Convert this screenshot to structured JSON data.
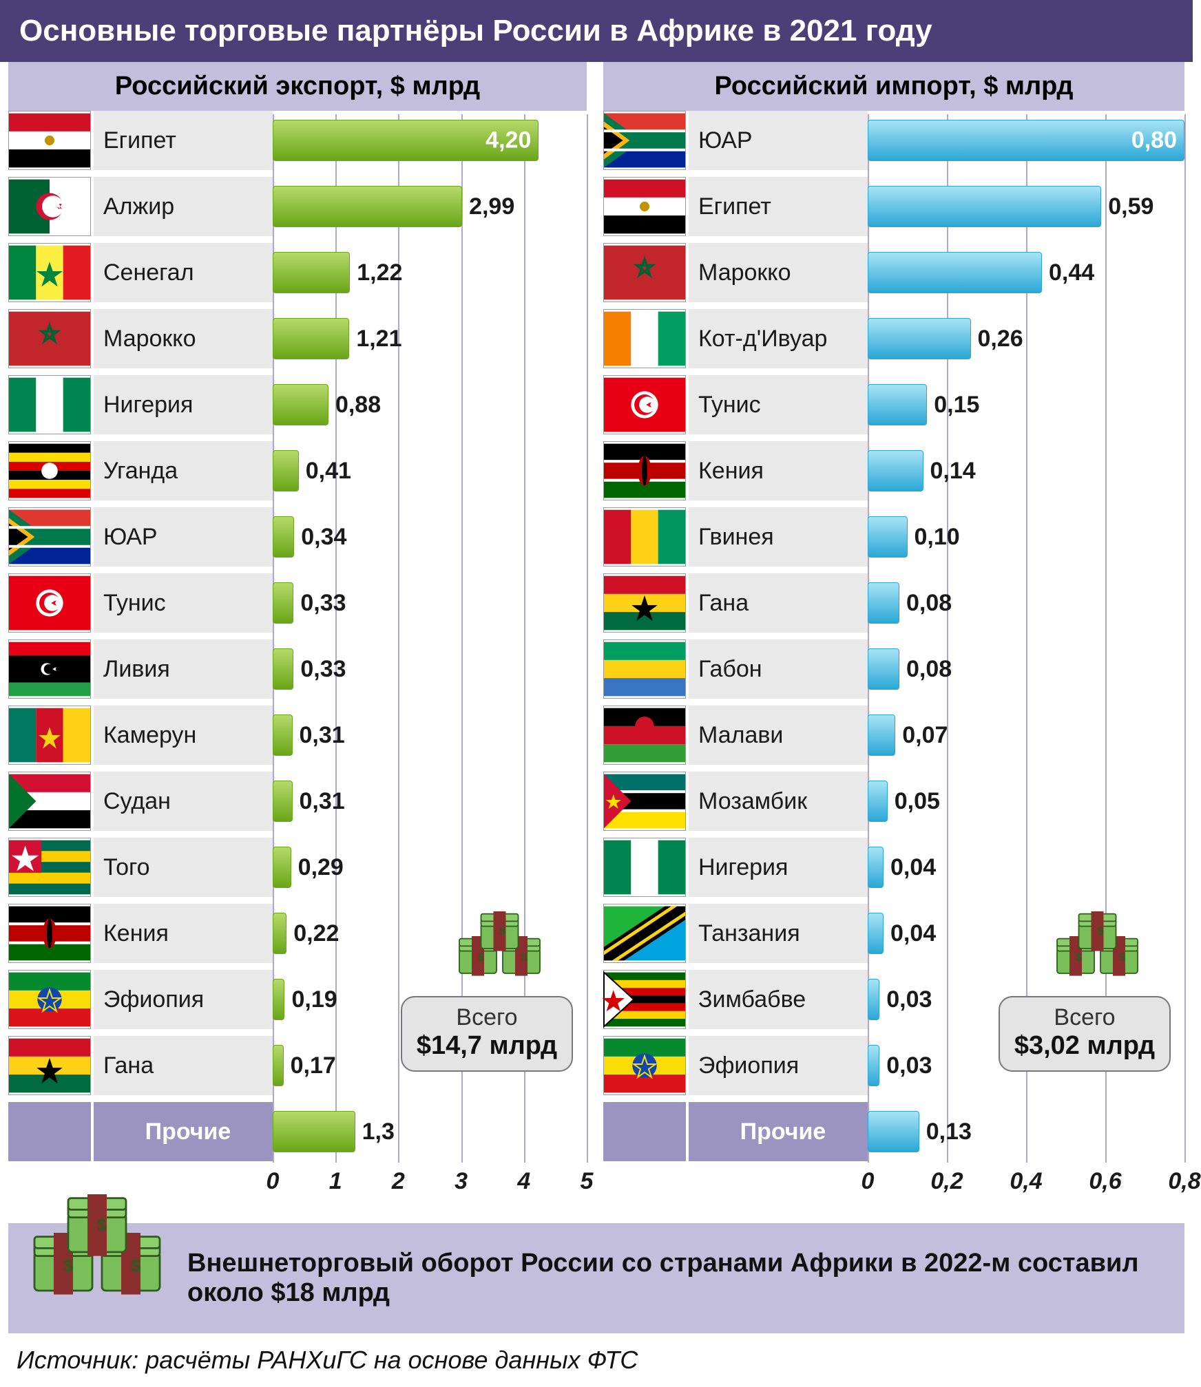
{
  "colors": {
    "header_bg": "#4b3f78",
    "band_bg": "#c2bedc",
    "grid_color": "#b0a8cc",
    "label_cell_bg": "#e9e9e9",
    "prochie_bg": "#9b94c0",
    "text": "#1a1a1a"
  },
  "title": "Основные торговые партнёры России в Африке в 2021 году",
  "export": {
    "header": "Российский экспорт, $ млрд",
    "max": 5,
    "tick_step": 1,
    "ticks": [
      "0",
      "1",
      "2",
      "3",
      "4",
      "5"
    ],
    "bar_gradient": [
      "#b5d96a",
      "#6aa61a"
    ],
    "items": [
      {
        "country": "Египет",
        "value": 4.2,
        "label": "4,20",
        "inside": true,
        "flag": "egypt"
      },
      {
        "country": "Алжир",
        "value": 2.99,
        "label": "2,99",
        "flag": "algeria"
      },
      {
        "country": "Сенегал",
        "value": 1.22,
        "label": "1,22",
        "flag": "senegal"
      },
      {
        "country": "Марокко",
        "value": 1.21,
        "label": "1,21",
        "flag": "morocco"
      },
      {
        "country": "Нигерия",
        "value": 0.88,
        "label": "0,88",
        "flag": "nigeria"
      },
      {
        "country": "Уганда",
        "value": 0.41,
        "label": "0,41",
        "flag": "uganda"
      },
      {
        "country": "ЮАР",
        "value": 0.34,
        "label": "0,34",
        "flag": "southafrica"
      },
      {
        "country": "Тунис",
        "value": 0.33,
        "label": "0,33",
        "flag": "tunisia"
      },
      {
        "country": "Ливия",
        "value": 0.33,
        "label": "0,33",
        "flag": "libya"
      },
      {
        "country": "Камерун",
        "value": 0.31,
        "label": "0,31",
        "flag": "cameroon"
      },
      {
        "country": "Судан",
        "value": 0.31,
        "label": "0,31",
        "flag": "sudan"
      },
      {
        "country": "Того",
        "value": 0.29,
        "label": "0,29",
        "flag": "togo"
      },
      {
        "country": "Кения",
        "value": 0.22,
        "label": "0,22",
        "flag": "kenya"
      },
      {
        "country": "Эфиопия",
        "value": 0.19,
        "label": "0,19",
        "flag": "ethiopia"
      },
      {
        "country": "Гана",
        "value": 0.17,
        "label": "0,17",
        "flag": "ghana"
      }
    ],
    "other": {
      "label": "Прочие",
      "value": 1.3,
      "value_label": "1,3"
    },
    "total_label": "Всего",
    "total_value": "$14,7 млрд"
  },
  "import": {
    "header": "Российский импорт, $ млрд",
    "max": 0.8,
    "tick_step": 0.2,
    "ticks": [
      "0",
      "0,2",
      "0,4",
      "0,6",
      "0,8"
    ],
    "bar_gradient": [
      "#a8e3f5",
      "#2aa7d6"
    ],
    "items": [
      {
        "country": "ЮАР",
        "value": 0.8,
        "label": "0,80",
        "inside": true,
        "flag": "southafrica"
      },
      {
        "country": "Египет",
        "value": 0.59,
        "label": "0,59",
        "flag": "egypt"
      },
      {
        "country": "Марокко",
        "value": 0.44,
        "label": "0,44",
        "flag": "morocco"
      },
      {
        "country": "Кот-д'Ивуар",
        "value": 0.26,
        "label": "0,26",
        "flag": "ivorycoast"
      },
      {
        "country": "Тунис",
        "value": 0.15,
        "label": "0,15",
        "flag": "tunisia"
      },
      {
        "country": "Кения",
        "value": 0.14,
        "label": "0,14",
        "flag": "kenya"
      },
      {
        "country": "Гвинея",
        "value": 0.1,
        "label": "0,10",
        "flag": "guinea"
      },
      {
        "country": "Гана",
        "value": 0.08,
        "label": "0,08",
        "flag": "ghana"
      },
      {
        "country": "Габон",
        "value": 0.08,
        "label": "0,08",
        "flag": "gabon"
      },
      {
        "country": "Малави",
        "value": 0.07,
        "label": "0,07",
        "flag": "malawi"
      },
      {
        "country": "Мозамбик",
        "value": 0.05,
        "label": "0,05",
        "flag": "mozambique"
      },
      {
        "country": "Нигерия",
        "value": 0.04,
        "label": "0,04",
        "flag": "nigeria"
      },
      {
        "country": "Танзания",
        "value": 0.04,
        "label": "0,04",
        "flag": "tanzania"
      },
      {
        "country": "Зимбабве",
        "value": 0.03,
        "label": "0,03",
        "flag": "zimbabwe"
      },
      {
        "country": "Эфиопия",
        "value": 0.03,
        "label": "0,03",
        "flag": "ethiopia"
      }
    ],
    "other": {
      "label": "Прочие",
      "value": 0.13,
      "value_label": "0,13"
    },
    "total_label": "Всего",
    "total_value": "$3,02 млрд"
  },
  "footer_note": "Внешнеторговый оборот России со странами Африки в 2022-м составил около $18 млрд",
  "source": "Источник: расчёты РАНХиГС на основе данных ФТС"
}
